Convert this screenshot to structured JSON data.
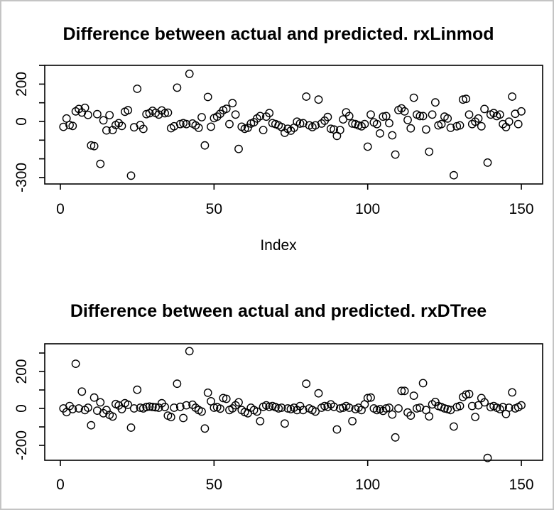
{
  "page": {
    "background": "#ffffff",
    "border_color": "#c4c4c4",
    "ink_color": "#000000"
  },
  "chart_data": [
    {
      "type": "scatter",
      "title": "Difference between actual and predicted. rxLinmod",
      "xlabel": "Index",
      "ylabel": "",
      "marker": "open-circle",
      "grid": false,
      "x_description": "Index 1..150",
      "xlim": [
        -5,
        157
      ],
      "ylim": [
        -335,
        300
      ],
      "x_ticks": [
        {
          "value": 0,
          "label": "0"
        },
        {
          "value": 50,
          "label": "50"
        },
        {
          "value": 100,
          "label": "100"
        },
        {
          "value": 150,
          "label": "150"
        }
      ],
      "y_ticks": [
        300,
        200,
        100,
        0,
        -100,
        -200,
        -300
      ],
      "y_tick_labels": [
        {
          "value": 200,
          "label": "200"
        },
        {
          "value": 0,
          "label": "0"
        },
        {
          "value": -300,
          "label": "-300"
        }
      ],
      "values": [
        -29,
        16,
        -19,
        -24,
        54,
        67,
        48,
        73,
        35,
        -128,
        -132,
        39,
        -227,
        6,
        -48,
        34,
        -46,
        -19,
        -9,
        -24,
        52,
        60,
        -290,
        -31,
        175,
        -19,
        -40,
        39,
        44,
        57,
        46,
        37,
        59,
        44,
        47,
        -36,
        -26,
        181,
        -14,
        -9,
        -14,
        255,
        -11,
        -21,
        -34,
        23,
        -128,
        131,
        -28,
        18,
        26,
        41,
        60,
        68,
        -14,
        98,
        37,
        -147,
        -28,
        -39,
        -34,
        -11,
        -4,
        16,
        29,
        -46,
        26,
        45,
        -9,
        -14,
        -21,
        -30,
        -61,
        -39,
        -49,
        -34,
        -1,
        -11,
        -9,
        133,
        -21,
        -30,
        -21,
        117,
        -11,
        4,
        24,
        -39,
        -43,
        -77,
        -46,
        11,
        49,
        29,
        -11,
        -14,
        -21,
        -26,
        -14,
        -135,
        37,
        -5,
        -14,
        -64,
        26,
        29,
        -9,
        -74,
        -177,
        61,
        70,
        54,
        8,
        -37,
        127,
        37,
        29,
        29,
        -43,
        -162,
        37,
        102,
        -21,
        -14,
        26,
        16,
        -34,
        -288,
        -26,
        -21,
        117,
        121,
        37,
        -14,
        -1,
        16,
        -26,
        67,
        -220,
        37,
        45,
        29,
        37,
        -14,
        -30,
        -1,
        133,
        41,
        -14,
        54
      ]
    },
    {
      "type": "scatter",
      "title": "Difference between actual and predicted. rxDTree",
      "xlabel": "",
      "ylabel": "",
      "marker": "open-circle",
      "grid": false,
      "x_description": "Index 1..150",
      "xlim": [
        -5,
        157
      ],
      "ylim": [
        -281,
        350
      ],
      "x_ticks": [
        {
          "value": 0,
          "label": "0"
        },
        {
          "value": 50,
          "label": "50"
        },
        {
          "value": 100,
          "label": "100"
        },
        {
          "value": 150,
          "label": "150"
        }
      ],
      "y_ticks": [
        300,
        200,
        100,
        0,
        -100,
        -200
      ],
      "y_tick_labels": [
        {
          "value": 200,
          "label": "200"
        },
        {
          "value": 0,
          "label": "0"
        },
        {
          "value": -200,
          "label": "-200"
        }
      ],
      "values": [
        0,
        -20,
        13,
        -4,
        242,
        0,
        91,
        -9,
        4,
        -91,
        59,
        -12,
        33,
        -26,
        -9,
        -35,
        -44,
        24,
        16,
        -4,
        28,
        20,
        -104,
        0,
        101,
        4,
        0,
        8,
        10,
        8,
        6,
        4,
        28,
        8,
        -39,
        -47,
        4,
        134,
        9,
        -52,
        17,
        310,
        20,
        4,
        -9,
        -17,
        -109,
        85,
        39,
        4,
        7,
        -1,
        56,
        52,
        -9,
        0,
        17,
        33,
        -9,
        -20,
        -26,
        4,
        -9,
        -17,
        -69,
        9,
        17,
        9,
        13,
        7,
        0,
        4,
        -82,
        0,
        -4,
        4,
        -9,
        13,
        -9,
        134,
        0,
        -9,
        -17,
        82,
        4,
        13,
        9,
        22,
        9,
        -114,
        0,
        4,
        13,
        4,
        -69,
        -4,
        4,
        -9,
        22,
        56,
        59,
        0,
        -9,
        -4,
        -13,
        0,
        4,
        -33,
        -157,
        0,
        95,
        95,
        -22,
        -39,
        69,
        0,
        4,
        137,
        -9,
        -43,
        22,
        35,
        13,
        7,
        0,
        -4,
        -9,
        -98,
        7,
        13,
        62,
        75,
        78,
        13,
        -46,
        17,
        56,
        33,
        -268,
        7,
        13,
        4,
        -4,
        7,
        -30,
        4,
        87,
        0,
        7,
        17
      ]
    }
  ]
}
